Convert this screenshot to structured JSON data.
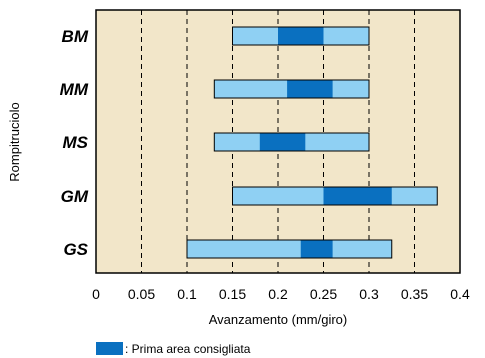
{
  "chart_data": {
    "type": "bar",
    "orientation": "horizontal-range",
    "categories": [
      "BM",
      "MM",
      "MS",
      "GM",
      "GS"
    ],
    "series": [
      {
        "name": "",
        "ranges": [
          [
            0.15,
            0.3
          ],
          [
            0.13,
            0.3
          ],
          [
            0.13,
            0.3
          ],
          [
            0.15,
            0.375
          ],
          [
            0.1,
            0.325
          ]
        ]
      },
      {
        "name": "Prima area consigliata",
        "ranges": [
          [
            0.2,
            0.25
          ],
          [
            0.21,
            0.26
          ],
          [
            0.18,
            0.23
          ],
          [
            0.25,
            0.325
          ],
          [
            0.225,
            0.26
          ]
        ]
      }
    ],
    "xlabel": "Avanzamento (mm/giro)",
    "ylabel": "Rompitruciolo",
    "xlim": [
      0,
      0.4
    ],
    "xticks": [
      "0",
      "0.05",
      "0.1",
      "0.15",
      "0.2",
      "0.25",
      "0.3",
      "0.35",
      "0.4"
    ],
    "grid": "vertical dashed",
    "legend": {
      "text": ": Prima area consigliata",
      "placement": "bottom-left"
    },
    "colors": {
      "background": "#f2e6c9",
      "range": "#8fd0f3",
      "recommended": "#0a70c0",
      "border": "#000000"
    }
  }
}
